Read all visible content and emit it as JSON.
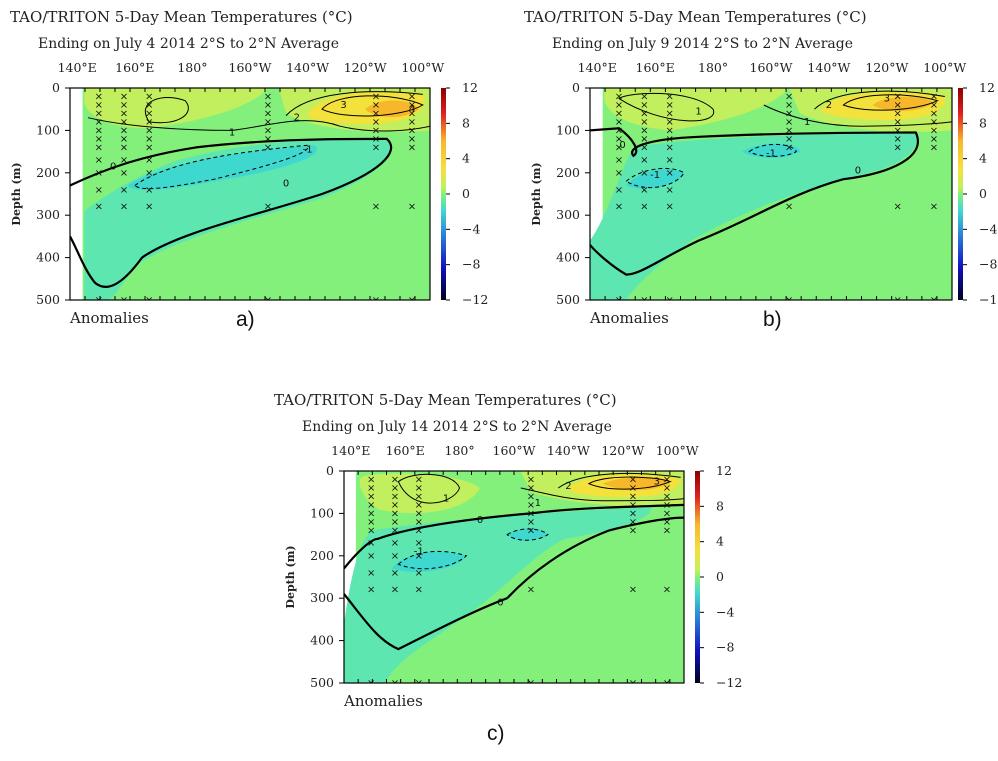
{
  "figure": {
    "panel_labels": [
      "a)",
      "b)",
      "c)"
    ]
  },
  "chart_data": [
    {
      "type": "heatmap",
      "title": "TAO/TRITON 5-Day Mean Temperatures (°C)",
      "subtitle": "Ending on July 4 2014   2°S to 2°N Average",
      "xlabel": "",
      "ylabel": "Depth (m)",
      "x_ticks": [
        "140°E",
        "160°E",
        "180°",
        "160°W",
        "140°W",
        "120°W",
        "100°W"
      ],
      "y_ticks": [
        "0",
        "100",
        "200",
        "300",
        "400",
        "500"
      ],
      "ylim": [
        500,
        0
      ],
      "colorbar_ticks": [
        "12",
        "8",
        "4",
        "0",
        "-4",
        "-8",
        "-12"
      ],
      "colorbar_range": [
        -12,
        12
      ],
      "annotation": "Anomalies",
      "contour_labels": [
        "0",
        "0",
        "1",
        "-1",
        "2",
        "3",
        "4"
      ]
    },
    {
      "type": "heatmap",
      "title": "TAO/TRITON 5-Day Mean Temperatures (°C)",
      "subtitle": "Ending on July 9 2014   2°S to 2°N Average",
      "xlabel": "",
      "ylabel": "Depth (m)",
      "x_ticks": [
        "140°E",
        "160°E",
        "180°",
        "160°W",
        "140°W",
        "120°W",
        "100°W"
      ],
      "y_ticks": [
        "0",
        "100",
        "200",
        "300",
        "400",
        "500"
      ],
      "ylim": [
        500,
        0
      ],
      "colorbar_ticks": [
        "12",
        "8",
        "4",
        "0",
        "-4",
        "-8",
        "-12"
      ],
      "colorbar_range": [
        -12,
        12
      ],
      "annotation": "Anomalies",
      "contour_labels": [
        "0",
        "0",
        "1",
        "1",
        "-1",
        "-1",
        "2",
        "3"
      ]
    },
    {
      "type": "heatmap",
      "title": "TAO/TRITON 5-Day Mean Temperatures (°C)",
      "subtitle": "Ending on July 14 2014   2°S to 2°N Average",
      "xlabel": "",
      "ylabel": "Depth (m)",
      "x_ticks": [
        "140°E",
        "160°E",
        "180°",
        "160°W",
        "140°W",
        "120°W",
        "100°W"
      ],
      "y_ticks": [
        "0",
        "100",
        "200",
        "300",
        "400",
        "500"
      ],
      "ylim": [
        500,
        0
      ],
      "colorbar_ticks": [
        "12",
        "8",
        "4",
        "0",
        "-4",
        "-8",
        "-12"
      ],
      "colorbar_range": [
        -12,
        12
      ],
      "annotation": "Anomalies",
      "contour_labels": [
        "0",
        "0",
        "1",
        "1",
        "-1",
        "2",
        "3"
      ]
    }
  ],
  "colors": {
    "background": "#84f07c",
    "cool_light": "#5de6b0",
    "cool": "#3fd8cf",
    "warm_light": "#c2ef5e",
    "warm": "#f3e13c",
    "warm_core": "#f6b82a"
  }
}
